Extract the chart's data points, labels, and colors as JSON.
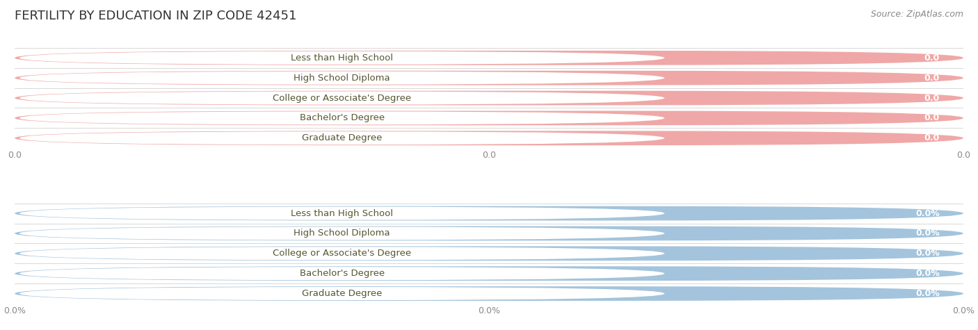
{
  "title": "FERTILITY BY EDUCATION IN ZIP CODE 42451",
  "source": "Source: ZipAtlas.com",
  "categories": [
    "Less than High School",
    "High School Diploma",
    "College or Associate's Degree",
    "Bachelor's Degree",
    "Graduate Degree"
  ],
  "top_values": [
    0.0,
    0.0,
    0.0,
    0.0,
    0.0
  ],
  "bottom_values": [
    0.0,
    0.0,
    0.0,
    0.0,
    0.0
  ],
  "top_color": "#EFA8A7",
  "bottom_color": "#A3C4DC",
  "bar_bg_color": "#EFEFEF",
  "top_value_labels": [
    "0.0",
    "0.0",
    "0.0",
    "0.0",
    "0.0"
  ],
  "bottom_value_labels": [
    "0.0%",
    "0.0%",
    "0.0%",
    "0.0%",
    "0.0%"
  ],
  "top_xtick_labels": [
    "0.0",
    "0.0",
    "0.0"
  ],
  "bottom_xtick_labels": [
    "0.0%",
    "0.0%",
    "0.0%"
  ],
  "title_fontsize": 13,
  "label_fontsize": 9.5,
  "value_fontsize": 9,
  "tick_fontsize": 9,
  "source_fontsize": 9,
  "fig_bg_color": "#FFFFFF",
  "grid_color": "#D8D8D8",
  "label_text_color": "#555533",
  "value_text_color": "#FFFFFF",
  "tick_text_color": "#888888",
  "source_text_color": "#888888"
}
